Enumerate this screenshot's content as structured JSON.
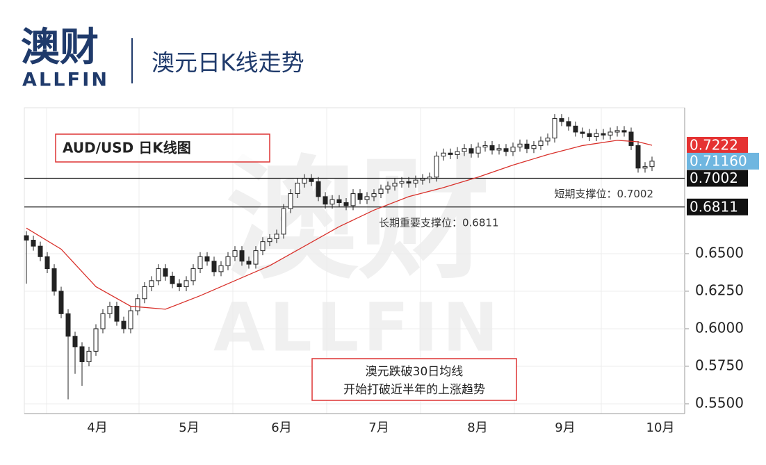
{
  "header": {
    "logo": "澳财",
    "logo_sub": "ALLFIN",
    "title": "澳元日K线走势"
  },
  "watermark": {
    "logo": "澳财",
    "logo_sub": "ALLFIN"
  },
  "chart_data": {
    "type": "candlestick",
    "title": "AUD/USD 日K线图",
    "annotation": [
      "澳元跌破30日均线",
      "开始打破近半年的上涨趋势"
    ],
    "open": [
      0.662,
      0.659,
      0.655,
      0.648,
      0.64,
      0.625,
      0.61,
      0.595,
      0.588,
      0.578,
      0.585,
      0.6,
      0.61,
      0.615,
      0.605,
      0.6,
      0.612,
      0.62,
      0.628,
      0.632,
      0.64,
      0.635,
      0.63,
      0.628,
      0.632,
      0.64,
      0.648,
      0.645,
      0.638,
      0.642,
      0.648,
      0.652,
      0.645,
      0.643,
      0.652,
      0.658,
      0.66,
      0.663,
      0.68,
      0.69,
      0.697,
      0.7,
      0.698,
      0.688,
      0.683,
      0.686,
      0.684,
      0.682,
      0.69,
      0.686,
      0.688,
      0.69,
      0.693,
      0.695,
      0.697,
      0.698,
      0.697,
      0.699,
      0.7,
      0.701,
      0.715,
      0.717,
      0.716,
      0.718,
      0.72,
      0.717,
      0.721,
      0.722,
      0.719,
      0.72,
      0.718,
      0.721,
      0.723,
      0.72,
      0.722,
      0.725,
      0.727,
      0.74,
      0.738,
      0.735,
      0.731,
      0.73,
      0.728,
      0.73,
      0.729,
      0.731,
      0.732,
      0.731,
      0.722,
      0.707,
      0.708
    ],
    "close": [
      0.659,
      0.655,
      0.648,
      0.64,
      0.625,
      0.61,
      0.595,
      0.588,
      0.578,
      0.585,
      0.6,
      0.61,
      0.615,
      0.605,
      0.6,
      0.612,
      0.62,
      0.628,
      0.632,
      0.64,
      0.635,
      0.63,
      0.628,
      0.632,
      0.64,
      0.648,
      0.645,
      0.638,
      0.642,
      0.648,
      0.652,
      0.645,
      0.643,
      0.652,
      0.658,
      0.66,
      0.663,
      0.68,
      0.69,
      0.697,
      0.7,
      0.698,
      0.688,
      0.683,
      0.686,
      0.684,
      0.682,
      0.69,
      0.686,
      0.688,
      0.69,
      0.693,
      0.695,
      0.697,
      0.698,
      0.697,
      0.699,
      0.7,
      0.701,
      0.715,
      0.717,
      0.716,
      0.718,
      0.72,
      0.717,
      0.721,
      0.722,
      0.719,
      0.72,
      0.718,
      0.721,
      0.723,
      0.72,
      0.722,
      0.725,
      0.727,
      0.74,
      0.738,
      0.735,
      0.731,
      0.73,
      0.728,
      0.73,
      0.729,
      0.731,
      0.732,
      0.731,
      0.722,
      0.707,
      0.708,
      0.7116
    ],
    "high": [
      0.665,
      0.662,
      0.658,
      0.651,
      0.643,
      0.628,
      0.613,
      0.598,
      0.591,
      0.588,
      0.603,
      0.613,
      0.618,
      0.618,
      0.608,
      0.615,
      0.623,
      0.631,
      0.635,
      0.643,
      0.643,
      0.638,
      0.633,
      0.635,
      0.643,
      0.651,
      0.651,
      0.648,
      0.645,
      0.651,
      0.655,
      0.655,
      0.648,
      0.655,
      0.661,
      0.663,
      0.666,
      0.683,
      0.693,
      0.7,
      0.703,
      0.703,
      0.701,
      0.691,
      0.689,
      0.689,
      0.687,
      0.693,
      0.693,
      0.691,
      0.693,
      0.696,
      0.698,
      0.7,
      0.701,
      0.701,
      0.702,
      0.703,
      0.704,
      0.718,
      0.72,
      0.72,
      0.721,
      0.723,
      0.723,
      0.724,
      0.725,
      0.725,
      0.723,
      0.723,
      0.724,
      0.726,
      0.726,
      0.725,
      0.728,
      0.73,
      0.743,
      0.743,
      0.741,
      0.738,
      0.734,
      0.733,
      0.733,
      0.733,
      0.734,
      0.735,
      0.735,
      0.734,
      0.725,
      0.711,
      0.7146
    ],
    "low": [
      0.63,
      0.652,
      0.645,
      0.637,
      0.622,
      0.607,
      0.553,
      0.57,
      0.562,
      0.575,
      0.582,
      0.597,
      0.607,
      0.602,
      0.597,
      0.597,
      0.609,
      0.617,
      0.625,
      0.629,
      0.632,
      0.627,
      0.625,
      0.625,
      0.629,
      0.637,
      0.642,
      0.635,
      0.635,
      0.639,
      0.645,
      0.642,
      0.64,
      0.64,
      0.649,
      0.655,
      0.657,
      0.66,
      0.677,
      0.687,
      0.694,
      0.695,
      0.685,
      0.68,
      0.68,
      0.681,
      0.679,
      0.679,
      0.683,
      0.683,
      0.685,
      0.687,
      0.69,
      0.692,
      0.694,
      0.694,
      0.694,
      0.696,
      0.697,
      0.698,
      0.712,
      0.713,
      0.713,
      0.715,
      0.714,
      0.714,
      0.718,
      0.716,
      0.716,
      0.715,
      0.715,
      0.718,
      0.717,
      0.717,
      0.719,
      0.722,
      0.724,
      0.735,
      0.732,
      0.728,
      0.727,
      0.725,
      0.725,
      0.726,
      0.726,
      0.728,
      0.728,
      0.719,
      0.704,
      0.704,
      0.705
    ],
    "moving_average": {
      "color": "#d9312b",
      "x": [
        0,
        5,
        10,
        15,
        20,
        25,
        30,
        35,
        40,
        45,
        50,
        55,
        60,
        65,
        70,
        75,
        80,
        85,
        88,
        90
      ],
      "values": [
        0.667,
        0.653,
        0.628,
        0.615,
        0.613,
        0.622,
        0.632,
        0.642,
        0.655,
        0.668,
        0.679,
        0.688,
        0.694,
        0.701,
        0.709,
        0.716,
        0.722,
        0.7255,
        0.7245,
        0.7222
      ]
    },
    "xlim": [
      -0.3,
      94.7
    ],
    "xticks": [
      {
        "value": 10.2,
        "label": "4月"
      },
      {
        "value": 23.4,
        "label": "5月"
      },
      {
        "value": 36.7,
        "label": "6月"
      },
      {
        "value": 50.7,
        "label": "7月"
      },
      {
        "value": 64.9,
        "label": "8月"
      },
      {
        "value": 77.5,
        "label": "9月"
      },
      {
        "value": 91.2,
        "label": "10月"
      }
    ],
    "ylim": [
      0.5435,
      0.7472
    ],
    "yticks": [
      {
        "value": 0.55,
        "label": "0.5500"
      },
      {
        "value": 0.575,
        "label": "0.5750"
      },
      {
        "value": 0.6,
        "label": "0.6000"
      },
      {
        "value": 0.625,
        "label": "0.6250"
      },
      {
        "value": 0.65,
        "label": "0.6500"
      }
    ],
    "grid": true,
    "price_tags": [
      {
        "value": 0.7222,
        "color": "#e53232"
      },
      {
        "value": 0.7116,
        "label": "0.71160",
        "color": "#6fb6e0"
      },
      {
        "value": 0.7002,
        "color": "#111111"
      },
      {
        "value": 0.6811,
        "color": "#111111"
      }
    ],
    "support_lines": [
      {
        "value": 0.7002,
        "label": "短期支撑位：0.7002"
      },
      {
        "value": 0.6811,
        "label": "长期重要支撑位：0.6811"
      }
    ],
    "up_color": "#ffffff",
    "down_color": "#222222"
  }
}
